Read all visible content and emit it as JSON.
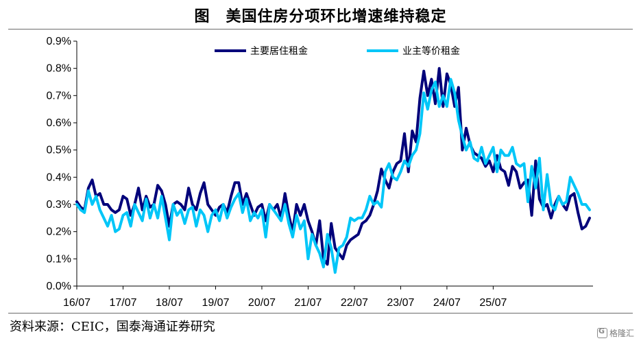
{
  "header": {
    "title": "图　美国住房分项环比增速维持稳定"
  },
  "footer": {
    "source": "资料来源：CEIC，国泰海通证券研究",
    "watermark": "格隆汇"
  },
  "colors": {
    "primary_rent": "#00007a",
    "owners_equivalent_rent": "#00c6f8",
    "axis": "#000000"
  },
  "chart_data": {
    "type": "line",
    "title": "",
    "xlabel": "",
    "ylabel": "",
    "ylim": [
      0,
      0.9
    ],
    "y_unit": "%",
    "y_ticks": [
      "0.0%",
      "0.1%",
      "0.2%",
      "0.3%",
      "0.4%",
      "0.5%",
      "0.6%",
      "0.7%",
      "0.8%",
      "0.9%"
    ],
    "x_ticks": [
      "16/07",
      "17/07",
      "18/07",
      "19/07",
      "20/07",
      "21/07",
      "22/07",
      "23/07",
      "24/07",
      "25/07"
    ],
    "x_start": "2016-07",
    "x_end": "2025-07",
    "legend_position": "top-center",
    "series": [
      {
        "name": "主要居住租金",
        "color": "#00007a",
        "values": [
          0.31,
          0.29,
          0.28,
          0.36,
          0.39,
          0.33,
          0.34,
          0.3,
          0.3,
          0.28,
          0.27,
          0.28,
          0.33,
          0.32,
          0.26,
          0.3,
          0.36,
          0.28,
          0.33,
          0.29,
          0.3,
          0.37,
          0.35,
          0.3,
          0.22,
          0.3,
          0.31,
          0.3,
          0.28,
          0.36,
          0.3,
          0.28,
          0.34,
          0.38,
          0.3,
          0.28,
          0.26,
          0.29,
          0.3,
          0.27,
          0.33,
          0.38,
          0.38,
          0.3,
          0.34,
          0.3,
          0.26,
          0.29,
          0.3,
          0.24,
          0.3,
          0.28,
          0.3,
          0.25,
          0.34,
          0.26,
          0.2,
          0.3,
          0.26,
          0.3,
          0.24,
          0.2,
          0.15,
          0.24,
          0.1,
          0.08,
          0.23,
          0.14,
          0.12,
          0.1,
          0.15,
          0.17,
          0.18,
          0.19,
          0.23,
          0.24,
          0.26,
          0.3,
          0.35,
          0.43,
          0.39,
          0.36,
          0.42,
          0.45,
          0.46,
          0.56,
          0.42,
          0.57,
          0.53,
          0.69,
          0.79,
          0.7,
          0.76,
          0.67,
          0.8,
          0.66,
          0.78,
          0.74,
          0.66,
          0.73,
          0.5,
          0.58,
          0.52,
          0.49,
          0.48,
          0.47,
          0.44,
          0.46,
          0.42,
          0.48,
          0.43,
          0.42,
          0.37,
          0.44,
          0.42,
          0.36,
          0.38,
          0.39,
          0.26,
          0.46,
          0.32,
          0.29,
          0.3,
          0.25,
          0.3,
          0.33,
          0.3,
          0.28,
          0.33,
          0.34,
          0.27,
          0.21,
          0.22,
          0.25
        ]
      },
      {
        "name": "业主等价租金",
        "color": "#00c6f8",
        "values": [
          0.3,
          0.28,
          0.27,
          0.35,
          0.3,
          0.33,
          0.28,
          0.25,
          0.22,
          0.26,
          0.2,
          0.21,
          0.26,
          0.27,
          0.22,
          0.3,
          0.27,
          0.24,
          0.32,
          0.25,
          0.3,
          0.25,
          0.33,
          0.25,
          0.17,
          0.3,
          0.26,
          0.28,
          0.23,
          0.28,
          0.29,
          0.22,
          0.28,
          0.26,
          0.2,
          0.26,
          0.28,
          0.24,
          0.3,
          0.25,
          0.29,
          0.32,
          0.34,
          0.27,
          0.32,
          0.24,
          0.27,
          0.25,
          0.28,
          0.18,
          0.3,
          0.28,
          0.26,
          0.24,
          0.3,
          0.23,
          0.18,
          0.26,
          0.21,
          0.24,
          0.1,
          0.19,
          0.15,
          0.12,
          0.07,
          0.19,
          0.14,
          0.05,
          0.14,
          0.15,
          0.18,
          0.25,
          0.24,
          0.25,
          0.25,
          0.28,
          0.33,
          0.3,
          0.31,
          0.29,
          0.42,
          0.45,
          0.4,
          0.39,
          0.42,
          0.46,
          0.44,
          0.48,
          0.5,
          0.56,
          0.71,
          0.65,
          0.72,
          0.75,
          0.66,
          0.7,
          0.66,
          0.76,
          0.71,
          0.61,
          0.55,
          0.5,
          0.53,
          0.47,
          0.46,
          0.51,
          0.45,
          0.48,
          0.51,
          0.42,
          0.5,
          0.48,
          0.48,
          0.51,
          0.45,
          0.44,
          0.45,
          0.31,
          0.44,
          0.36,
          0.47,
          0.28,
          0.41,
          0.3,
          0.28,
          0.33,
          0.3,
          0.31,
          0.4,
          0.37,
          0.34,
          0.3,
          0.3,
          0.28
        ]
      }
    ]
  }
}
